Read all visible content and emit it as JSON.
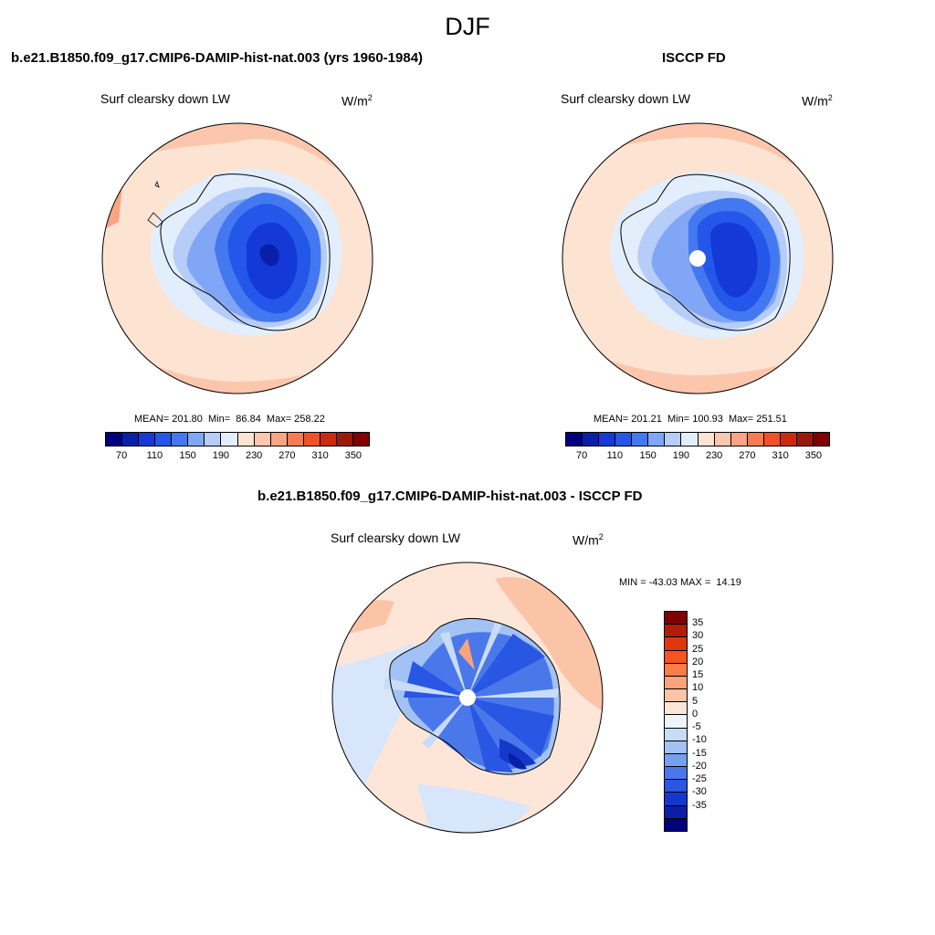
{
  "season": "DJF",
  "panels": {
    "model": {
      "title": "b.e21.B1850.f09_g17.CMIP6-DAMIP-hist-nat.003 (yrs 1960-1984)",
      "variable": "Surf clearsky down LW",
      "units": "W/m",
      "units_sup": "2",
      "stats": "MEAN= 201.80  Min=  86.84  Max= 258.22"
    },
    "obs": {
      "title": "ISCCP FD",
      "variable": "Surf clearsky down LW",
      "units": "W/m",
      "units_sup": "2",
      "stats": "MEAN= 201.21  Min= 100.93  Max= 251.51"
    },
    "diff": {
      "title": "b.e21.B1850.f09_g17.CMIP6-DAMIP-hist-nat.003 - ISCCP FD",
      "variable": "Surf clearsky down LW",
      "units": "W/m",
      "units_sup": "2",
      "stats": "MIN = -43.03 MAX =  14.19"
    }
  },
  "colorbar_main": {
    "colors": [
      "#00007f",
      "#0a1fa8",
      "#1439d6",
      "#2456ea",
      "#4478f0",
      "#80a6f5",
      "#b6ccf9",
      "#e2eefc",
      "#fde3d2",
      "#fcc7b0",
      "#f9a583",
      "#f57b52",
      "#f15128",
      "#cc2a10",
      "#9a1a0a",
      "#7f0000"
    ],
    "tick_labels": [
      "70",
      "110",
      "150",
      "190",
      "230",
      "270",
      "310",
      "350"
    ]
  },
  "colorbar_diff": {
    "colors": [
      "#7f0000",
      "#b01e06",
      "#e0380e",
      "#f9531f",
      "#fb7c48",
      "#fba37a",
      "#fcc4a6",
      "#fde6d8",
      "#eef4fd",
      "#c8dcf9",
      "#a2c2f6",
      "#769ff0",
      "#4a78ea",
      "#2a56e4",
      "#1538cc",
      "#0b1fa6",
      "#00007f"
    ],
    "tick_labels": [
      "35",
      "30",
      "25",
      "20",
      "15",
      "10",
      "5",
      "0",
      "-5",
      "-10",
      "-15",
      "-20",
      "-25",
      "-30",
      "-35"
    ]
  }
}
